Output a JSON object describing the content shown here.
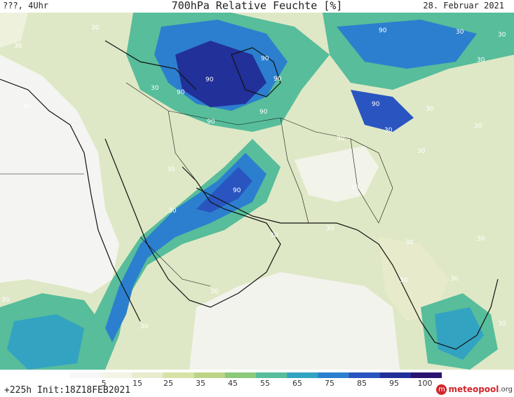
{
  "header": {
    "left_text": "???, 4Uhr",
    "title": "700hPa Relative Feuchte [%]",
    "date": "28. Februar 2021"
  },
  "footer": {
    "init_text": "+225h Init:18Z18FEB2021",
    "logo_brand": "meteopool",
    "logo_tld": ".org"
  },
  "legend": {
    "ticks": [
      "5",
      "15",
      "25",
      "35",
      "45",
      "55",
      "65",
      "75",
      "85",
      "95",
      "100"
    ],
    "colors": [
      "#f5f6f5",
      "#f3f3e6",
      "#e8eccc",
      "#d6e2a6",
      "#bcd585",
      "#8cc97a",
      "#57bd9a",
      "#33a3c2",
      "#2c7fce",
      "#2a55c0",
      "#22309a",
      "#2b1470"
    ]
  },
  "map": {
    "contour_labels": [
      "30",
      "90"
    ]
  }
}
